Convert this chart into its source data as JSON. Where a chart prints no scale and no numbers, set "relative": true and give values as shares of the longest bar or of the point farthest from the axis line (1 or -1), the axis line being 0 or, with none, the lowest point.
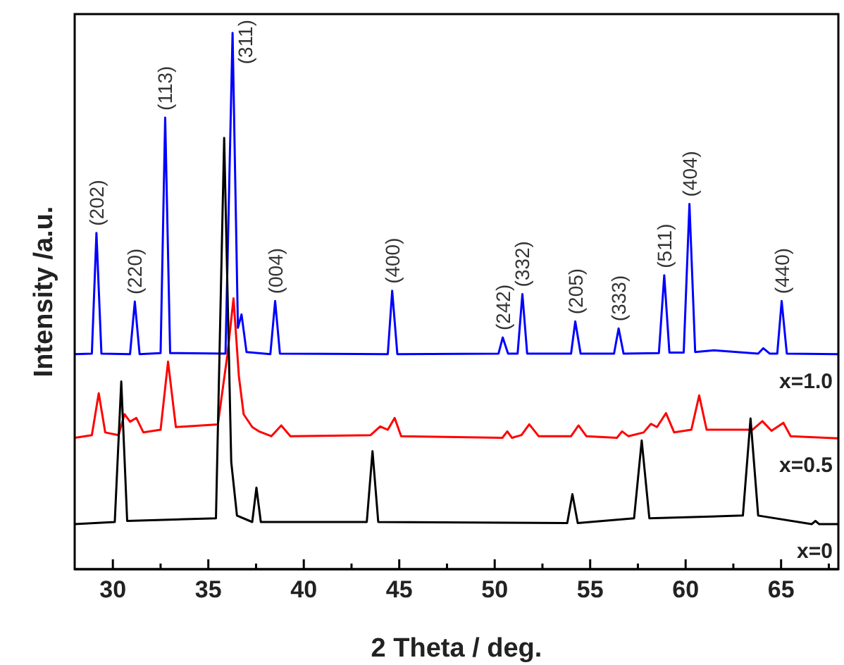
{
  "chart_data": {
    "type": "line",
    "relative": true,
    "xlabel": "2 Theta / deg.",
    "ylabel": "Intensity /a.u.",
    "xlim": [
      28,
      68
    ],
    "xticks": [
      30,
      {
        "value": 32.5,
        "label": null
      },
      35,
      {
        "value": 37.5,
        "label": null
      },
      40,
      {
        "value": 42.5,
        "label": null
      },
      45,
      {
        "value": 47.5,
        "label": null
      },
      50,
      {
        "value": 52.5,
        "label": null
      },
      55,
      {
        "value": 57.5,
        "label": null
      },
      60,
      {
        "value": 62.5,
        "label": null
      },
      65,
      {
        "value": 67.5,
        "label": null
      }
    ],
    "marker": "none",
    "series": [
      {
        "name": "x=1.0",
        "color": "#0000ff",
        "x": [
          28,
          28.9,
          29.14,
          29.4,
          30.9,
          31.15,
          31.4,
          32.5,
          32.74,
          33.0,
          35.9,
          36.27,
          36.55,
          36.74,
          37.0,
          38.25,
          38.5,
          38.75,
          44.4,
          44.63,
          44.9,
          50.2,
          50.42,
          50.7,
          51.2,
          51.45,
          51.7,
          54.0,
          54.22,
          54.5,
          56.25,
          56.49,
          56.75,
          58.6,
          58.88,
          59.15,
          59.9,
          60.2,
          60.5,
          61.5,
          63.8,
          64.07,
          64.4,
          64.8,
          65.03,
          65.3,
          68
        ],
        "values": [
          0.401,
          0.402,
          0.627,
          0.402,
          0.401,
          0.499,
          0.401,
          0.403,
          0.842,
          0.403,
          0.402,
          1.0,
          0.45,
          0.475,
          0.405,
          0.401,
          0.5,
          0.402,
          0.401,
          0.519,
          0.401,
          0.402,
          0.432,
          0.402,
          0.402,
          0.513,
          0.402,
          0.402,
          0.462,
          0.402,
          0.402,
          0.449,
          0.402,
          0.403,
          0.548,
          0.404,
          0.404,
          0.681,
          0.405,
          0.408,
          0.402,
          0.412,
          0.402,
          0.402,
          0.5,
          0.402,
          0.401
        ]
      },
      {
        "name": "x=0.5",
        "color": "#ff0000",
        "x": [
          28,
          28.9,
          29.26,
          29.6,
          30.3,
          30.61,
          30.9,
          31.23,
          31.6,
          32.5,
          32.89,
          33.3,
          35.5,
          36.0,
          36.32,
          36.6,
          36.85,
          37.3,
          37.65,
          38.3,
          38.82,
          39.3,
          43.5,
          44.0,
          44.4,
          44.76,
          45.1,
          50.4,
          50.66,
          50.9,
          51.4,
          51.81,
          52.3,
          54.0,
          54.39,
          54.8,
          56.4,
          56.67,
          57.0,
          57.8,
          58.18,
          58.5,
          58.97,
          59.4,
          60.3,
          60.71,
          61.1,
          63.5,
          64.02,
          64.5,
          65.12,
          65.5,
          68
        ],
        "values": [
          0.245,
          0.25,
          0.328,
          0.255,
          0.25,
          0.289,
          0.275,
          0.282,
          0.255,
          0.26,
          0.387,
          0.265,
          0.27,
          0.4,
          0.505,
          0.36,
          0.289,
          0.265,
          0.257,
          0.248,
          0.268,
          0.248,
          0.25,
          0.266,
          0.26,
          0.282,
          0.248,
          0.245,
          0.257,
          0.245,
          0.25,
          0.27,
          0.248,
          0.248,
          0.268,
          0.248,
          0.245,
          0.257,
          0.248,
          0.255,
          0.271,
          0.265,
          0.291,
          0.255,
          0.26,
          0.324,
          0.26,
          0.26,
          0.276,
          0.258,
          0.273,
          0.248,
          0.244
        ]
      },
      {
        "name": "x=0",
        "color": "#000000",
        "x": [
          28,
          30.1,
          30.44,
          30.75,
          35.4,
          35.83,
          36.2,
          36.5,
          37.3,
          37.52,
          37.75,
          43.3,
          43.6,
          43.9,
          53.8,
          54.07,
          54.35,
          57.3,
          57.7,
          58.1,
          63.0,
          63.4,
          63.8,
          66.6,
          66.8,
          67.0,
          68
        ],
        "values": [
          0.084,
          0.088,
          0.35,
          0.09,
          0.095,
          0.804,
          0.2,
          0.1,
          0.088,
          0.152,
          0.088,
          0.088,
          0.22,
          0.088,
          0.086,
          0.14,
          0.086,
          0.095,
          0.24,
          0.095,
          0.1,
          0.281,
          0.1,
          0.084,
          0.09,
          0.084,
          0.084
        ]
      }
    ],
    "annotations": [
      {
        "text": "(202)",
        "x": 29.14,
        "y": 0.627
      },
      {
        "text": "(220)",
        "x": 31.15,
        "y": 0.499
      },
      {
        "text": "(113)",
        "x": 32.74,
        "y": 0.842
      },
      {
        "text": "(311)",
        "x": 36.27,
        "y": 1.0
      },
      {
        "text": "(004)",
        "x": 38.5,
        "y": 0.5
      },
      {
        "text": "(400)",
        "x": 44.63,
        "y": 0.519
      },
      {
        "text": "(242)",
        "x": 50.42,
        "y": 0.432
      },
      {
        "text": "(332)",
        "x": 51.45,
        "y": 0.513
      },
      {
        "text": "(205)",
        "x": 54.22,
        "y": 0.462
      },
      {
        "text": "(333)",
        "x": 56.49,
        "y": 0.449
      },
      {
        "text": "(511)",
        "x": 58.88,
        "y": 0.548
      },
      {
        "text": "(404)",
        "x": 60.2,
        "y": 0.681
      },
      {
        "text": "(440)",
        "x": 65.03,
        "y": 0.5
      }
    ]
  }
}
